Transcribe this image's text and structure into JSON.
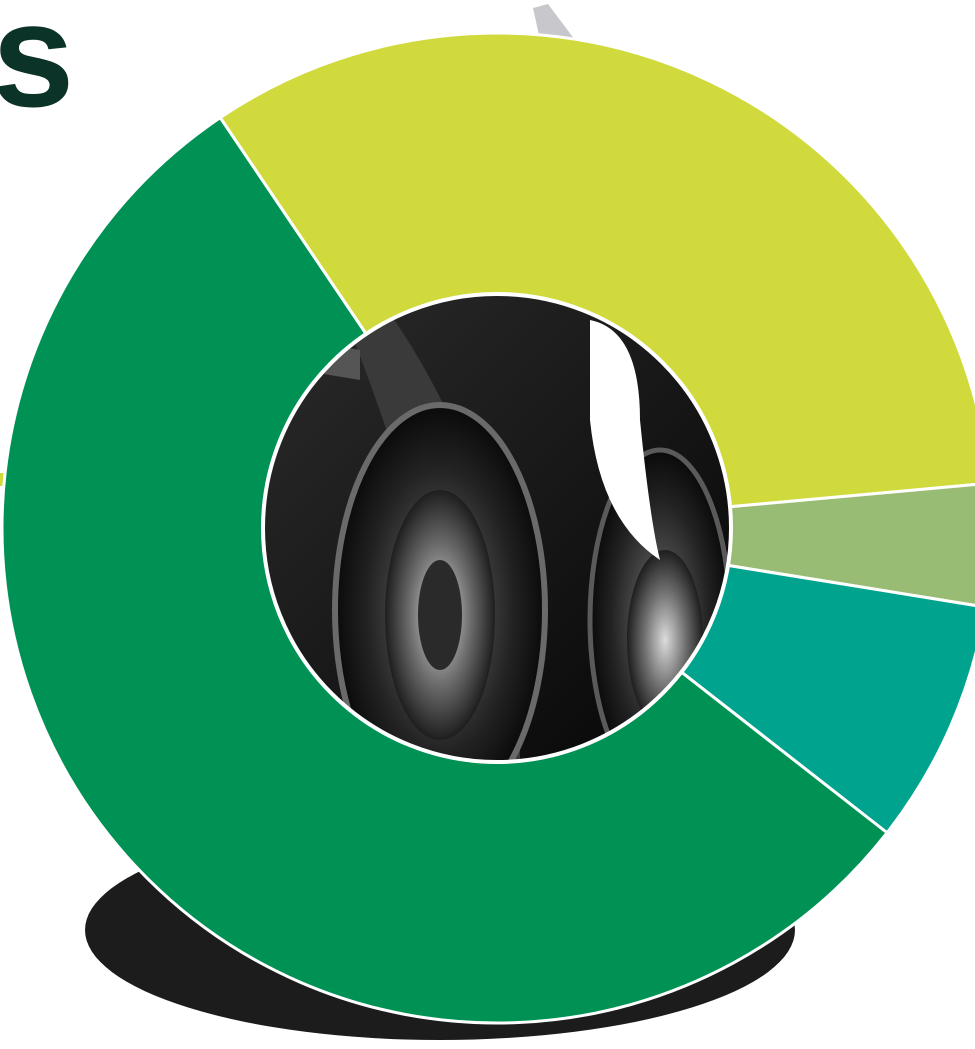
{
  "heading": {
    "fragment": "s"
  },
  "chart_data": {
    "type": "pie",
    "variant": "donut",
    "title": "",
    "legend": "none",
    "start_angle_deg": -34,
    "categories": [
      "",
      "",
      "",
      ""
    ],
    "series": [
      {
        "values": [
          33,
          4,
          8,
          55
        ]
      }
    ],
    "slice_colors": [
      "#d0da3c",
      "#98bc74",
      "#00a38e",
      "#009255"
    ],
    "center_image": "truck-wheels-photo",
    "accent_bar_color": "#d0da3c",
    "shadow_color": "#1c1c1c"
  }
}
